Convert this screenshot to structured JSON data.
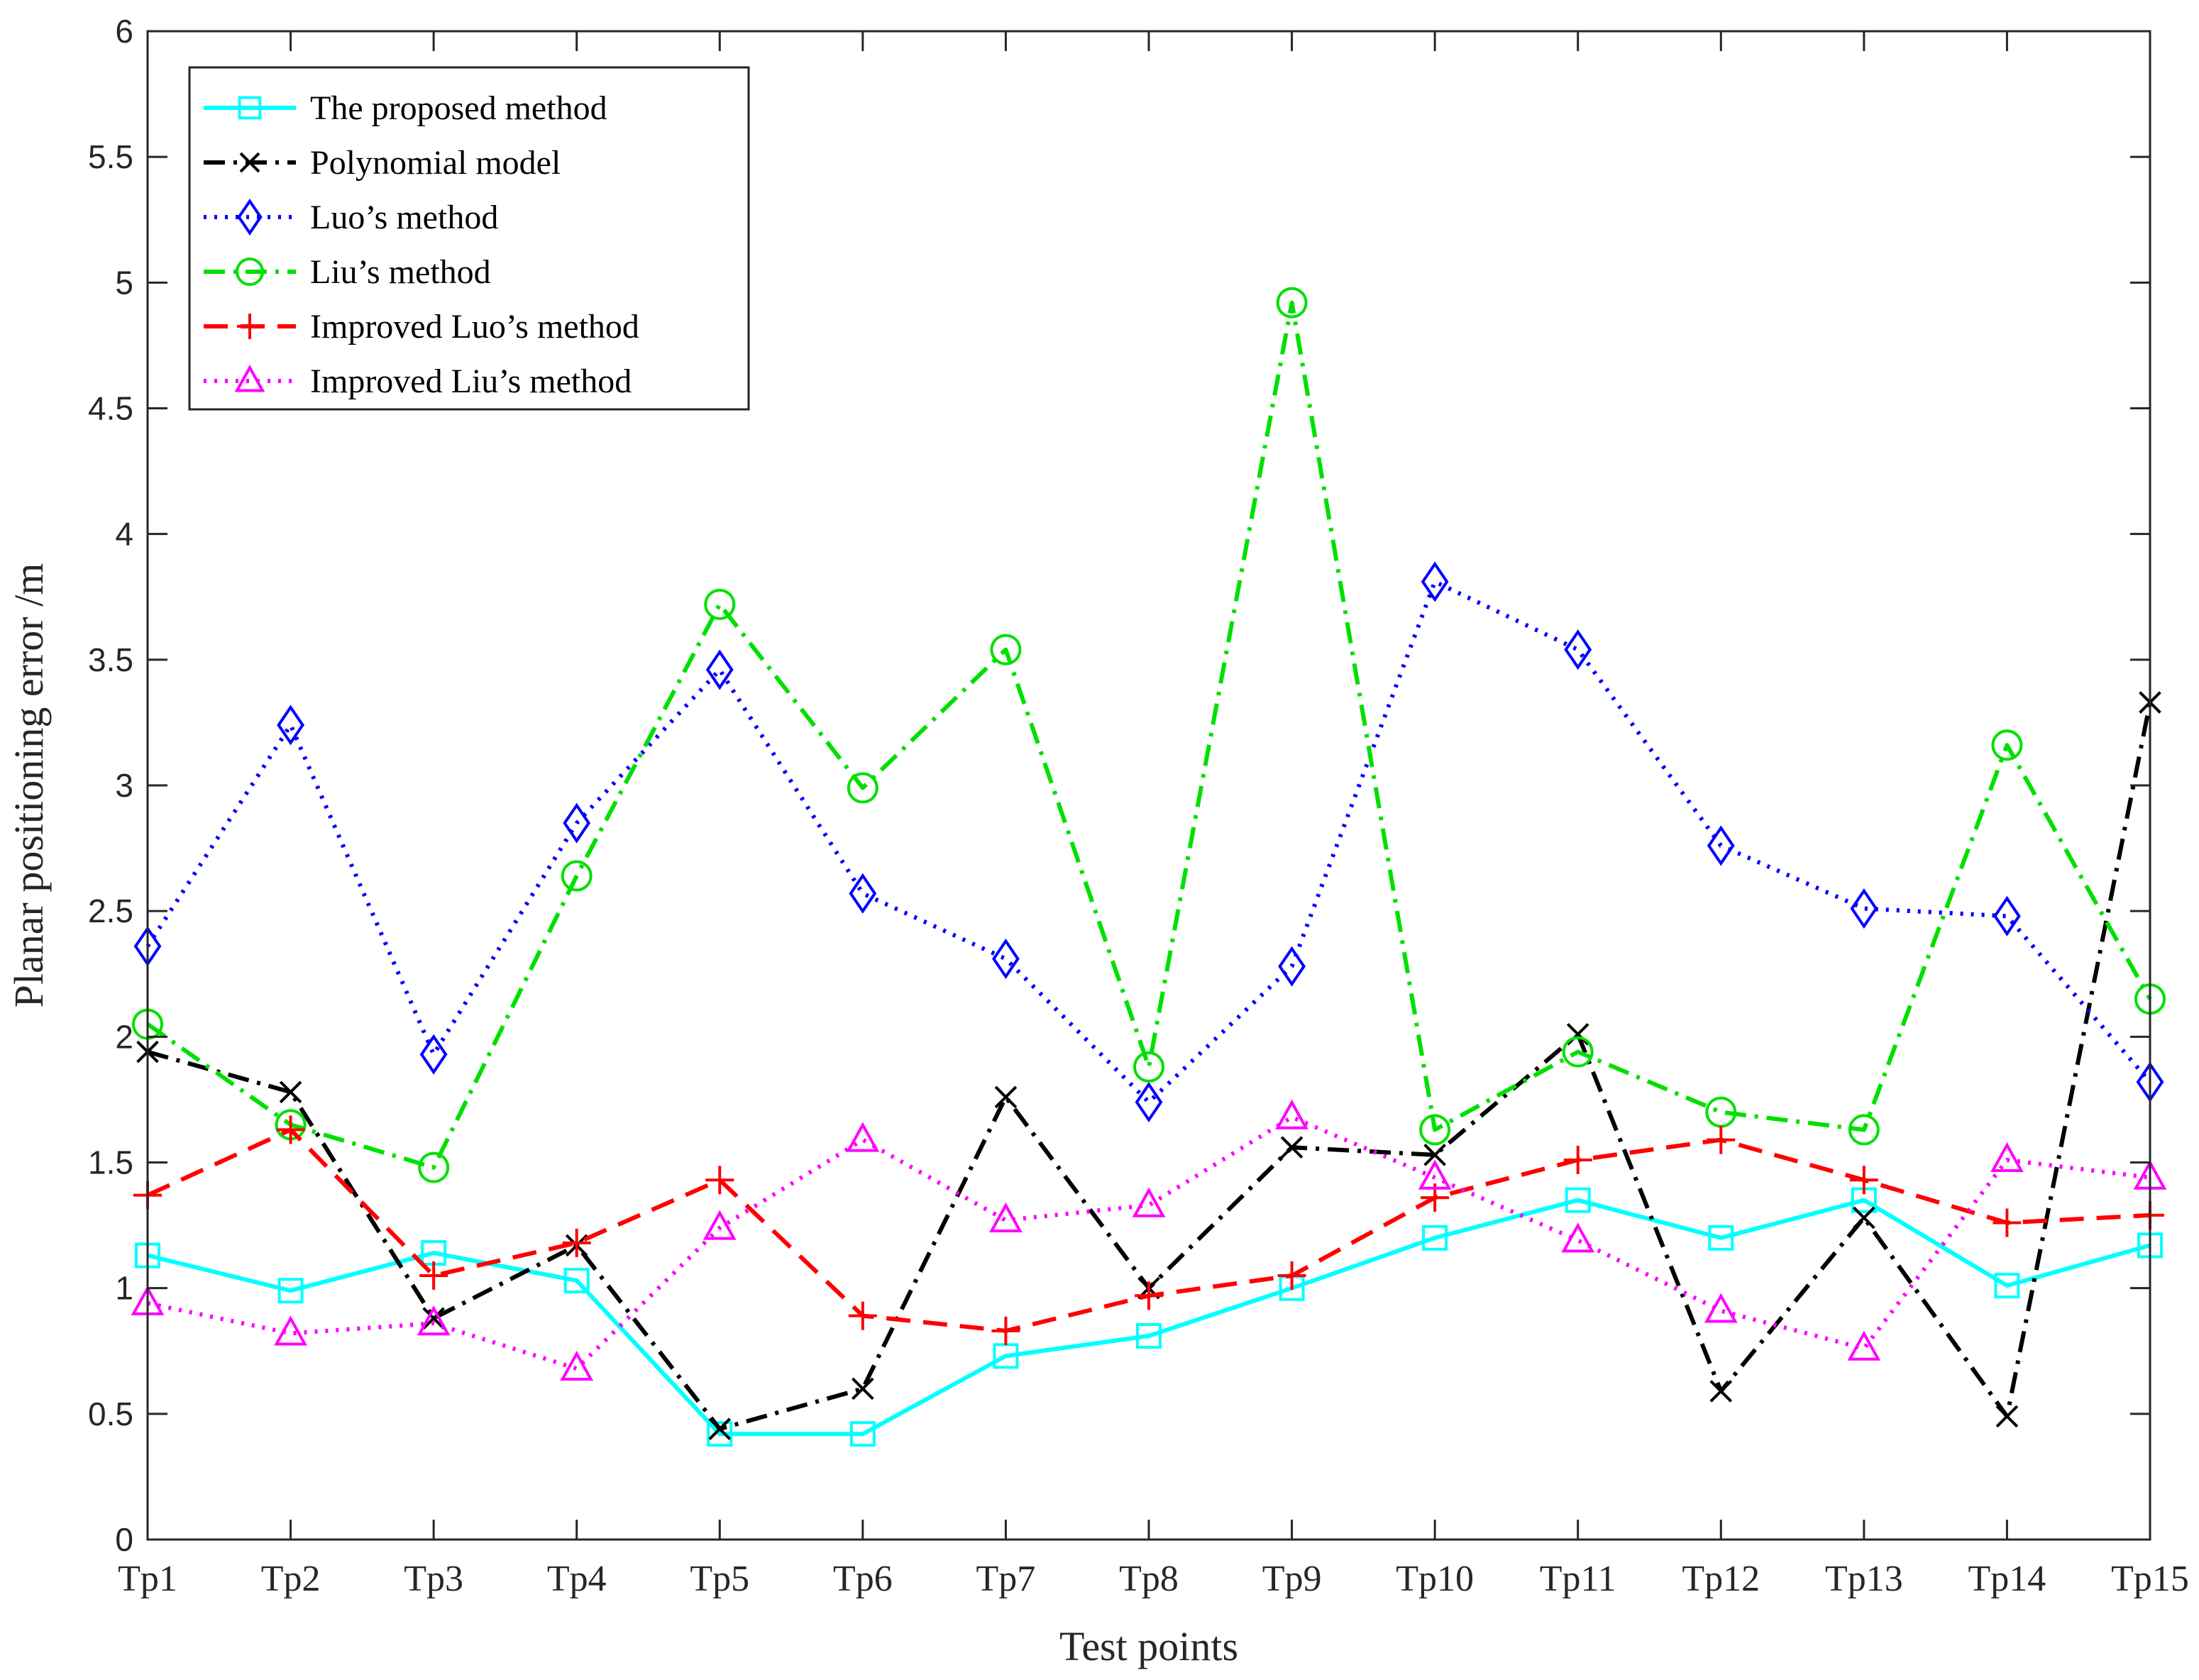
{
  "chart_data": {
    "type": "line",
    "title": "",
    "xlabel": "Test points",
    "ylabel": "Planar positioning error /m",
    "ylim": [
      0,
      6
    ],
    "yticks": [
      "0",
      "0.5",
      "1",
      "1.5",
      "2",
      "2.5",
      "3",
      "3.5",
      "4",
      "4.5",
      "5",
      "5.5",
      "6"
    ],
    "categories": [
      "Tp1",
      "Tp2",
      "Tp3",
      "Tp4",
      "Tp5",
      "Tp6",
      "Tp7",
      "Tp8",
      "Tp9",
      "Tp10",
      "Tp11",
      "Tp12",
      "Tp13",
      "Tp14",
      "Tp15"
    ],
    "grid": false,
    "legend_position": "top-left",
    "series": [
      {
        "name": "The proposed method",
        "color": "#00ffff",
        "line_style": "solid",
        "marker": "square",
        "values": [
          1.13,
          0.99,
          1.14,
          1.03,
          0.42,
          0.42,
          0.73,
          0.81,
          1.0,
          1.2,
          1.35,
          1.2,
          1.35,
          1.01,
          1.17
        ]
      },
      {
        "name": "Polynomial model",
        "color": "#000000",
        "line_style": "dashdot",
        "marker": "x",
        "values": [
          1.94,
          1.78,
          0.88,
          1.17,
          0.44,
          0.6,
          1.76,
          1.0,
          1.56,
          1.53,
          2.01,
          0.59,
          1.28,
          0.49,
          3.33
        ]
      },
      {
        "name": "Luo’s method",
        "color": "#0000ff",
        "line_style": "dotted",
        "marker": "diamond",
        "values": [
          2.36,
          3.24,
          1.93,
          2.85,
          3.46,
          2.57,
          2.31,
          1.74,
          2.28,
          3.81,
          3.54,
          2.76,
          2.51,
          2.48,
          1.82
        ]
      },
      {
        "name": "Liu’s method",
        "color": "#00e000",
        "line_style": "dashdot",
        "marker": "circle",
        "values": [
          2.05,
          1.65,
          1.48,
          2.64,
          3.72,
          2.99,
          3.54,
          1.88,
          4.92,
          1.63,
          1.94,
          1.7,
          1.63,
          3.16,
          2.15
        ]
      },
      {
        "name": "Improved Luo’s method",
        "color": "#ff0000",
        "line_style": "dashed",
        "marker": "plus",
        "values": [
          1.37,
          1.63,
          1.05,
          1.18,
          1.43,
          0.89,
          0.83,
          0.97,
          1.05,
          1.36,
          1.51,
          1.59,
          1.43,
          1.26,
          1.29
        ]
      },
      {
        "name": "Improved Liu’s method",
        "color": "#ff00ff",
        "line_style": "dotted",
        "marker": "triangle",
        "values": [
          0.94,
          0.82,
          0.86,
          0.68,
          1.24,
          1.59,
          1.27,
          1.33,
          1.68,
          1.44,
          1.19,
          0.91,
          0.76,
          1.51,
          1.44
        ]
      }
    ]
  }
}
